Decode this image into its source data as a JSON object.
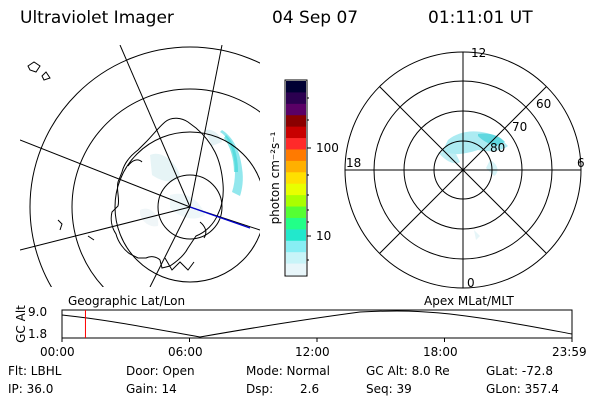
{
  "header": {
    "instrument": "Ultraviolet Imager",
    "date": "04 Sep 07",
    "time": "01:11:01 UT"
  },
  "polar_plot": {
    "mlt_labels": [
      "12",
      "18",
      "6",
      "0"
    ],
    "lat_labels": [
      "60",
      "70",
      "80"
    ]
  },
  "colorbar": {
    "unit_label": "photon cm⁻²s⁻¹",
    "tick_labels": [
      "100",
      "10"
    ],
    "colors": [
      "#000033",
      "#2b0050",
      "#5a0066",
      "#8a0000",
      "#c80000",
      "#ff2a2a",
      "#ff7a00",
      "#ffb000",
      "#ffe000",
      "#e8ff00",
      "#aaff00",
      "#55ff33",
      "#22ff88",
      "#22e8cc",
      "#88eef4",
      "#c8f4f8",
      "#e8f6fa"
    ]
  },
  "panel_labels": {
    "left": "Geographic Lat/Lon",
    "right": "Apex MLat/MLT"
  },
  "altitude_plot": {
    "ylabel": "GC Alt",
    "yticks": [
      "9.0",
      "1.8"
    ],
    "xticks": [
      "00:00",
      "06:00",
      "12:00",
      "18:00",
      "23:59"
    ],
    "current_time_fraction": 0.046,
    "marker_color": "#ff0000"
  },
  "footer": {
    "row1": {
      "filter": "Flt: LBHL",
      "door": "Door: Open",
      "mode": "Mode: Normal",
      "gcalt": "GC Alt: 8.0 Re",
      "glat": "GLat: -72.8"
    },
    "row2": {
      "ip": "IP: 36.0",
      "gain": "Gain: 14",
      "dsp_label": "Dsp:",
      "dsp_value": "2.6",
      "seq": "Seq: 39",
      "glon": "GLon: 357.4"
    }
  }
}
